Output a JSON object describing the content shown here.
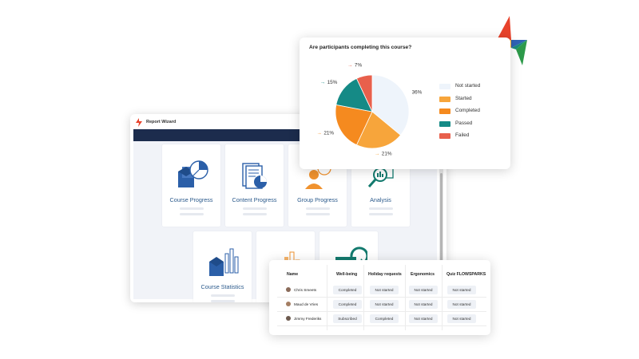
{
  "wizard": {
    "title": "Report Wizard"
  },
  "cards": [
    {
      "label": "Course Progress",
      "icon": "course-progress-icon"
    },
    {
      "label": "Content Progress",
      "icon": "content-progress-icon"
    },
    {
      "label": "Group Progress",
      "icon": "group-progress-icon"
    },
    {
      "label": "Analysis",
      "icon": "analysis-icon"
    },
    {
      "label": "Course Statistics",
      "icon": "course-statistics-icon"
    },
    {
      "label": "",
      "icon": "bar-chart-icon"
    },
    {
      "label": "",
      "icon": "refresh-report-icon"
    }
  ],
  "chart_data": {
    "type": "pie",
    "title": "Are participants completing this course?",
    "categories": [
      "Not started",
      "Started",
      "Completed",
      "Passed",
      "Failed"
    ],
    "values": [
      36,
      21,
      21,
      15,
      7
    ],
    "value_labels": [
      "36%",
      "21%",
      "21%",
      "15%",
      "7%"
    ],
    "colors": [
      "#eef4fb",
      "#f7a53b",
      "#f58a1f",
      "#158a86",
      "#e8604c"
    ],
    "legend_position": "right"
  },
  "table": {
    "headers": [
      "Name",
      "Well-being",
      "Holiday requests",
      "Ergonomics",
      "Quiz FLOWSPARKS"
    ],
    "rows": [
      {
        "name": "Chris Smeets",
        "cells": [
          "Completed",
          "Not started",
          "Not started",
          "Not started"
        ]
      },
      {
        "name": "Maud de Vries",
        "cells": [
          "Completed",
          "Not started",
          "Not started",
          "Not started"
        ]
      },
      {
        "name": "Jimmy Frederiks",
        "cells": [
          "Subscribed",
          "Completed",
          "Not started",
          "Not started"
        ]
      }
    ]
  },
  "colors": {
    "navy": "#1c2c4d",
    "card_label": "#2b5a8c",
    "icon_blue": "#2b5fa8",
    "icon_orange": "#f0922e",
    "icon_teal": "#137a6e"
  }
}
